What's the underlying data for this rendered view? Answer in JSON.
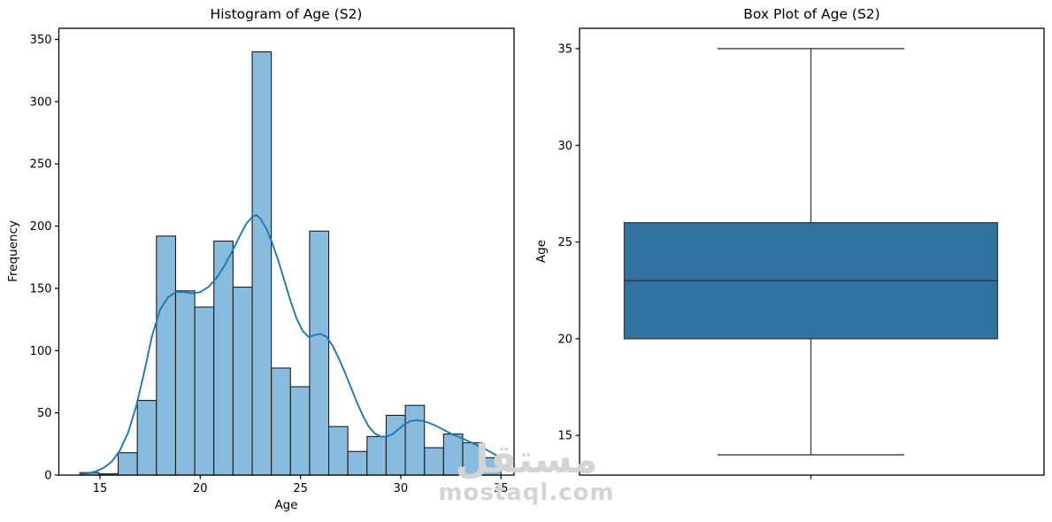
{
  "figure": {
    "background": "#ffffff",
    "watermark": {
      "arabic": "مستقل",
      "domain": "mostaql.com",
      "color": "#d4d4d4"
    }
  },
  "chart_data": [
    {
      "type": "histogram",
      "title": "Histogram of Age (S2)",
      "xlabel": "Age",
      "ylabel": "Frequency",
      "xlim": [
        12.95,
        35.65
      ],
      "ylim": [
        0,
        358.9
      ],
      "xticks": [
        15,
        20,
        25,
        30,
        35
      ],
      "yticks": [
        0,
        50,
        100,
        150,
        200,
        250,
        300,
        350
      ],
      "grid": false,
      "bin_start": 14,
      "bin_end": 35,
      "bin_count": 22,
      "bin_width": 0.9545,
      "counts": [
        2,
        1,
        18,
        60,
        192,
        148,
        135,
        188,
        151,
        340,
        86,
        71,
        196,
        39,
        19,
        31,
        48,
        56,
        22,
        33,
        26,
        14
      ],
      "kde_curve": [
        [
          14.0,
          0.8
        ],
        [
          14.4,
          1.5
        ],
        [
          14.8,
          3
        ],
        [
          15.2,
          6
        ],
        [
          15.6,
          11
        ],
        [
          16.0,
          20
        ],
        [
          16.4,
          34
        ],
        [
          16.8,
          55
        ],
        [
          17.2,
          82
        ],
        [
          17.6,
          112
        ],
        [
          18.0,
          133
        ],
        [
          18.4,
          143
        ],
        [
          18.8,
          147
        ],
        [
          19.2,
          147
        ],
        [
          19.6,
          146
        ],
        [
          20.0,
          147
        ],
        [
          20.4,
          151
        ],
        [
          20.8,
          158
        ],
        [
          21.2,
          168
        ],
        [
          21.6,
          180
        ],
        [
          22.0,
          193
        ],
        [
          22.3,
          202
        ],
        [
          22.6,
          207.5
        ],
        [
          22.8,
          209
        ],
        [
          23.0,
          206
        ],
        [
          23.3,
          198
        ],
        [
          23.6,
          186
        ],
        [
          23.9,
          172
        ],
        [
          24.2,
          156
        ],
        [
          24.5,
          140
        ],
        [
          24.8,
          126
        ],
        [
          25.1,
          116
        ],
        [
          25.4,
          111
        ],
        [
          25.7,
          112.5
        ],
        [
          26.0,
          113.5
        ],
        [
          26.3,
          111
        ],
        [
          26.6,
          104
        ],
        [
          26.9,
          94
        ],
        [
          27.2,
          83
        ],
        [
          27.5,
          71
        ],
        [
          27.8,
          59
        ],
        [
          28.1,
          48
        ],
        [
          28.4,
          39
        ],
        [
          28.7,
          33.5
        ],
        [
          29.0,
          31
        ],
        [
          29.3,
          31
        ],
        [
          29.6,
          33
        ],
        [
          29.9,
          37
        ],
        [
          30.2,
          41
        ],
        [
          30.5,
          43.5
        ],
        [
          30.8,
          44
        ],
        [
          31.1,
          43.5
        ],
        [
          31.4,
          42
        ],
        [
          31.7,
          40
        ],
        [
          32.0,
          37.5
        ],
        [
          32.3,
          35
        ],
        [
          32.6,
          32.5
        ],
        [
          33.0,
          30
        ],
        [
          33.4,
          27
        ],
        [
          33.8,
          24
        ],
        [
          34.2,
          21
        ],
        [
          34.6,
          17.5
        ],
        [
          35.0,
          13.5
        ]
      ],
      "colors": {
        "bar_fill": "#88bcde",
        "bar_edge": "#1c1c1c",
        "kde_line": "#1f77b4",
        "spine": "#000000"
      }
    },
    {
      "type": "box",
      "title": "Box Plot of Age (S2)",
      "xlabel": "",
      "ylabel": "Age",
      "ylim": [
        12.95,
        36.05
      ],
      "yticks": [
        15,
        20,
        25,
        30,
        35
      ],
      "grid": false,
      "whisker_low": 14,
      "q1": 20,
      "median": 23,
      "q3": 26,
      "whisker_high": 35,
      "outliers": [],
      "colors": {
        "box_fill": "#3173a0",
        "line": "#3a3a3a",
        "spine": "#000000"
      }
    }
  ]
}
